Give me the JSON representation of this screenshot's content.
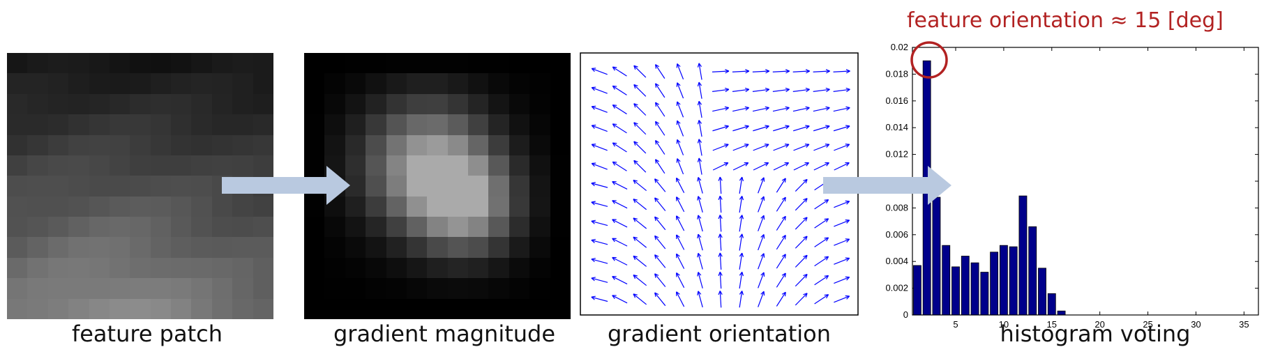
{
  "captions": {
    "feature_patch": "feature patch",
    "gradient_magnitude": "gradient magnitude",
    "gradient_orientation": "gradient orientation",
    "histogram_voting": "histogram voting"
  },
  "annotation": "feature orientation ≈ 15 [deg]",
  "colors": {
    "bar": "#00008b",
    "quiver": "#0000ff",
    "arrow": "#b9c9e0",
    "annotation": "#b22222"
  },
  "chart_data": {
    "type": "bar",
    "x": [
      1,
      2,
      3,
      4,
      5,
      6,
      7,
      8,
      9,
      10,
      11,
      12,
      13,
      14,
      15,
      16,
      17,
      18,
      19,
      20,
      21,
      22,
      23,
      24,
      25,
      26,
      27,
      28,
      29,
      30,
      31,
      32,
      33,
      34,
      35,
      36
    ],
    "values": [
      0.0037,
      0.019,
      0.0088,
      0.0052,
      0.0036,
      0.0044,
      0.0039,
      0.0032,
      0.0047,
      0.0052,
      0.0051,
      0.0089,
      0.0066,
      0.0035,
      0.0016,
      0.0003,
      0,
      0,
      0,
      0,
      0,
      0,
      0,
      0,
      0,
      0,
      0,
      0,
      0,
      0,
      0,
      0,
      0,
      0,
      0,
      0
    ],
    "xlim": [
      0.5,
      36.5
    ],
    "ylim": [
      0,
      0.02
    ],
    "xticks": [
      5,
      10,
      15,
      20,
      25,
      30,
      35
    ],
    "yticks": [
      "0",
      "0.002",
      "0.004",
      "0.006",
      "0.008",
      "0.01",
      "0.012",
      "0.014",
      "0.016",
      "0.018",
      "0.02"
    ]
  }
}
